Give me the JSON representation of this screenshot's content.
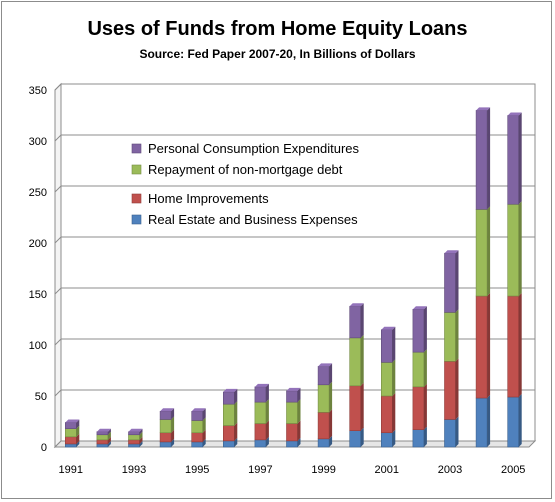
{
  "chart_data": {
    "type": "bar",
    "stacked": true,
    "title": "Uses of Funds from Home Equity Loans",
    "subtitle": "Source:  Fed Paper 2007-20,  In Billions of Dollars",
    "xlabel": "",
    "ylabel": "",
    "ylim": [
      0,
      350
    ],
    "yticks": [
      "0",
      "50",
      "100",
      "150",
      "200",
      "250",
      "300",
      "350"
    ],
    "categories": [
      "1991",
      "1992",
      "1993",
      "1994",
      "1995",
      "1996",
      "1997",
      "1998",
      "1999",
      "2000",
      "2001",
      "2002",
      "2003",
      "2004",
      "2005"
    ],
    "x_tick_labels": [
      "1991",
      "",
      "1993",
      "",
      "1995",
      "",
      "1997",
      "",
      "1999",
      "",
      "2001",
      "",
      "2003",
      "",
      "2005"
    ],
    "legend_position": "upper-left",
    "legend_order": [
      3,
      2,
      1,
      0
    ],
    "series": [
      {
        "name": "Real Estate and Business Expenses",
        "color": "#4f81bd",
        "values": [
          3,
          3,
          3,
          5,
          5,
          6,
          7,
          6,
          8,
          16,
          14,
          17,
          27,
          48,
          49
        ]
      },
      {
        "name": "Home Improvements",
        "color": "#c0504d",
        "values": [
          7,
          4,
          4,
          9,
          9,
          15,
          16,
          17,
          26,
          44,
          36,
          42,
          57,
          100,
          99
        ]
      },
      {
        "name": "Repayment of non-mortgage debt",
        "color": "#9bbb59",
        "values": [
          8,
          5,
          5,
          13,
          12,
          21,
          21,
          21,
          27,
          47,
          33,
          34,
          48,
          85,
          90
        ]
      },
      {
        "name": "Personal Consumption Expenditures",
        "color": "#8064a2",
        "values": [
          6,
          3,
          3,
          8,
          9,
          12,
          15,
          11,
          18,
          31,
          32,
          42,
          58,
          97,
          87
        ]
      }
    ]
  }
}
